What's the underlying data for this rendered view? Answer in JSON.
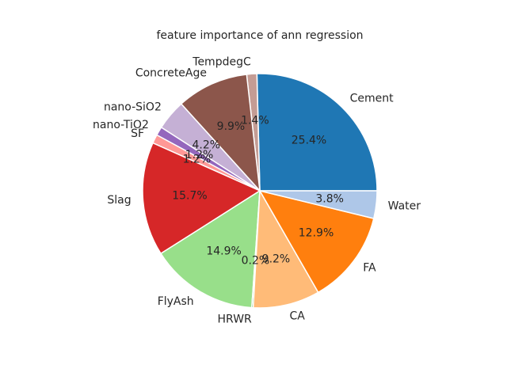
{
  "chart_data": {
    "type": "pie",
    "title": "feature importance of ann regression",
    "labels": [
      "Cement",
      "TempdegC",
      "ConcreteAge",
      "nano-SiO2",
      "nano-TiO2",
      "SF",
      "Slag",
      "FlyAsh",
      "HRWR",
      "CA",
      "FA",
      "Water"
    ],
    "values": [
      25.4,
      1.4,
      9.9,
      4.2,
      1.2,
      1.2,
      15.7,
      14.9,
      0.2,
      9.2,
      12.9,
      3.8
    ],
    "pct_labels": [
      "25.4%",
      "1.4%",
      "9.9%",
      "4.2%",
      "1.2%",
      "1.2%",
      "15.7%",
      "14.9%",
      "0.2%",
      "9.2%",
      "12.9%",
      "3.8%"
    ],
    "colors": [
      "#1f77b4",
      "#c49c94",
      "#8c564b",
      "#c5b0d5",
      "#9467bd",
      "#ff9896",
      "#d62728",
      "#98df8a",
      "#2ca02c",
      "#ffbb78",
      "#ff7f0e",
      "#aec7e8"
    ],
    "start_angle": 0,
    "direction": "counterclockwise"
  }
}
